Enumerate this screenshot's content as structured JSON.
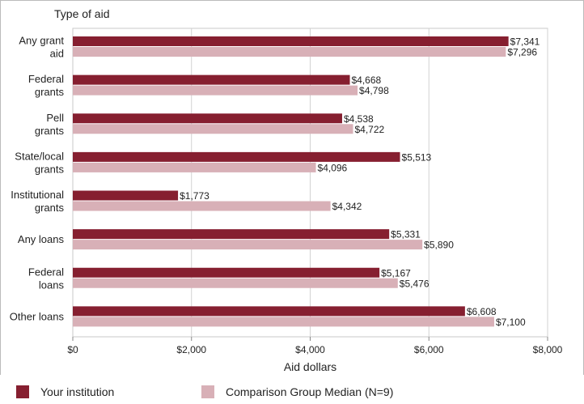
{
  "chart_data": {
    "type": "bar",
    "orientation": "horizontal",
    "y_title": "Type of aid",
    "xlabel": "Aid dollars",
    "xlim": [
      0,
      8000
    ],
    "x_ticks": [
      0,
      2000,
      4000,
      6000,
      8000
    ],
    "x_tick_labels": [
      "$0",
      "$2,000",
      "$4,000",
      "$6,000",
      "$8,000"
    ],
    "categories": [
      [
        "Any grant",
        "aid"
      ],
      [
        "Federal",
        "grants"
      ],
      [
        "Pell",
        "grants"
      ],
      [
        "State/local",
        "grants"
      ],
      [
        "Institutional",
        "grants"
      ],
      [
        "Any loans"
      ],
      [
        "Federal",
        "loans"
      ],
      [
        "Other loans"
      ]
    ],
    "series": [
      {
        "name": "Your institution",
        "color": "#861f30",
        "values": [
          7341,
          4668,
          4538,
          5513,
          1773,
          5331,
          5167,
          6608
        ],
        "labels": [
          "$7,341",
          "$4,668",
          "$4,538",
          "$5,513",
          "$1,773",
          "$5,331",
          "$5,167",
          "$6,608"
        ]
      },
      {
        "name": "Comparison Group Median (N=9)",
        "color": "#d8b0b7",
        "values": [
          7296,
          4798,
          4722,
          4096,
          4342,
          5890,
          5476,
          7100
        ],
        "labels": [
          "$7,296",
          "$4,798",
          "$4,722",
          "$4,096",
          "$4,342",
          "$5,890",
          "$5,476",
          "$7,100"
        ]
      }
    ],
    "grid": true
  },
  "legend": {
    "items": [
      {
        "label": "Your institution",
        "color": "#861f30"
      },
      {
        "label": "Comparison Group Median (N=9)",
        "color": "#d8b0b7"
      }
    ]
  }
}
